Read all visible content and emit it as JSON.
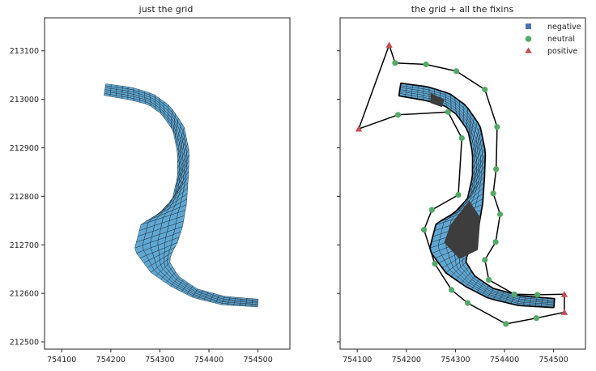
{
  "colors": {
    "grid_fill": "#5fa8d3",
    "grid_stroke": "#1e2a36",
    "island": "#3d3d3d",
    "negative": "#4c72b0",
    "neutral": "#55a868",
    "positive": "#c44e52",
    "frame": "#222222",
    "boundary": "#000000"
  },
  "chart_data": [
    {
      "type": "scatter",
      "title": "just the grid",
      "xlim": [
        754065,
        754565
      ],
      "ylim": [
        212485,
        213168
      ],
      "xticks": [
        754100,
        754200,
        754300,
        754400,
        754500
      ],
      "yticks": [
        212500,
        212600,
        212700,
        212800,
        212900,
        213000,
        213100
      ],
      "xtick_labels": [
        "754100",
        "754200",
        "754300",
        "754400",
        "754500"
      ],
      "ytick_labels": [
        "212500",
        "212600",
        "212700",
        "212800",
        "212900",
        "213000",
        "213100"
      ],
      "grid": false,
      "layers": [
        "grid"
      ]
    },
    {
      "type": "scatter",
      "title": "the grid + all the fixins",
      "xlim": [
        754065,
        754565
      ],
      "ylim": [
        212485,
        213168
      ],
      "xticks": [
        754100,
        754200,
        754300,
        754400,
        754500
      ],
      "yticks": [
        212500,
        212600,
        212700,
        212800,
        212900,
        213000,
        213100
      ],
      "xtick_labels": [
        "754100",
        "754200",
        "754300",
        "754400",
        "754500"
      ],
      "ytick_labels": [],
      "grid": false,
      "layers": [
        "domain",
        "boundary",
        "grid",
        "islands",
        "points"
      ],
      "legend": {
        "position": "top-right",
        "entries": [
          "negative",
          "neutral",
          "positive"
        ]
      },
      "series": [
        {
          "name": "negative",
          "marker": "square",
          "points": []
        },
        {
          "name": "neutral",
          "marker": "circle",
          "points": [
            [
              754177,
              213075
            ],
            [
              754240,
              213072
            ],
            [
              754302,
              213058
            ],
            [
              754360,
              213020
            ],
            [
              754385,
              212943
            ],
            [
              754383,
              212856
            ],
            [
              754377,
              212806
            ],
            [
              754391,
              212763
            ],
            [
              754382,
              212706
            ],
            [
              754360,
              212669
            ],
            [
              754368,
              212628
            ],
            [
              754420,
              212598
            ],
            [
              754467,
              212597
            ],
            [
              754465,
              212549
            ],
            [
              754403,
              212537
            ],
            [
              754325,
              212580
            ],
            [
              754292,
              212607
            ],
            [
              754258,
              212661
            ],
            [
              754236,
              212731
            ],
            [
              754252,
              212772
            ],
            [
              754306,
              212803
            ],
            [
              754313,
              212920
            ],
            [
              754285,
              212974
            ],
            [
              754183,
              212968
            ]
          ]
        },
        {
          "name": "positive",
          "marker": "triangle",
          "points": [
            [
              754165,
              213112
            ],
            [
              754103,
              212939
            ],
            [
              754522,
              212598
            ],
            [
              754522,
              212561
            ]
          ]
        }
      ]
    }
  ]
}
